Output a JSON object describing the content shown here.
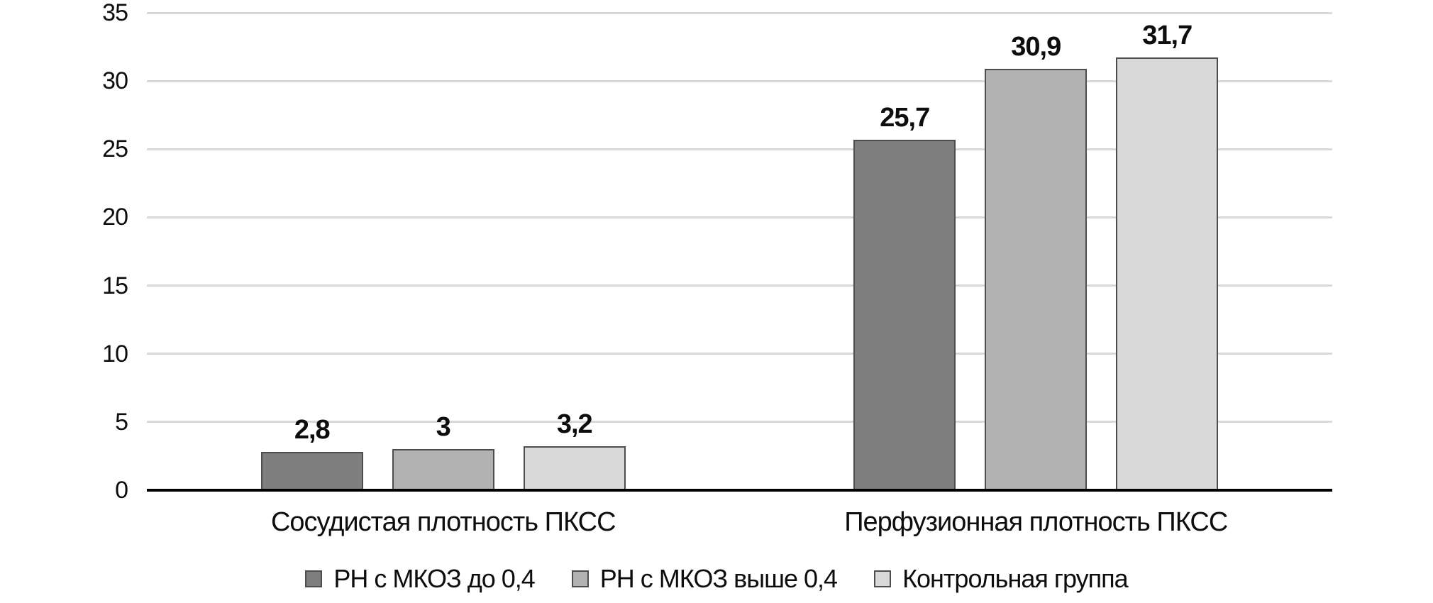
{
  "chart_data": {
    "type": "bar",
    "title": "",
    "categories": [
      "Сосудистая плотность ПКСС",
      "Перфузионная плотность ПКСС"
    ],
    "series": [
      {
        "name": "РН с МКОЗ до 0,4",
        "color": "#7F7F7F",
        "border_color": "#4D4D4D",
        "values": [
          2.8,
          25.7
        ],
        "value_labels": [
          "2,8",
          "25,7"
        ]
      },
      {
        "name": "РН с МКОЗ выше 0,4",
        "color": "#B2B2B2",
        "border_color": "#4D4D4D",
        "values": [
          3,
          30.9
        ],
        "value_labels": [
          "3",
          "30,9"
        ]
      },
      {
        "name": "Контрольная группа",
        "color": "#D9D9D9",
        "border_color": "#4D4D4D",
        "values": [
          3.2,
          31.7
        ],
        "value_labels": [
          "3,2",
          "31,7"
        ]
      }
    ],
    "y_axis": {
      "min": 0,
      "max": 35,
      "step": 5,
      "tick_labels": [
        "0",
        "5",
        "10",
        "15",
        "20",
        "25",
        "30",
        "35"
      ]
    },
    "grid": true,
    "gridline_color": "#D9D9D9",
    "axis_color": "#000000",
    "legend_position": "bottom"
  }
}
